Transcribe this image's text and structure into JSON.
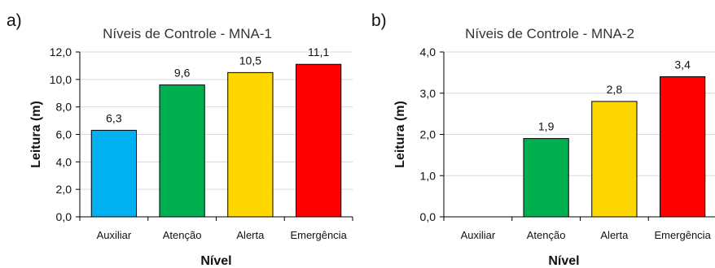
{
  "chart_data": [
    {
      "type": "bar",
      "panel_label": "a)",
      "title": "Níveis de Controle - MNA-1",
      "xlabel": "Nível",
      "ylabel": "Leitura (m)",
      "ylim": [
        0,
        12
      ],
      "yticks": [
        "0,0",
        "2,0",
        "4,0",
        "6,0",
        "8,0",
        "10,0",
        "12,0"
      ],
      "categories": [
        "Auxiliar",
        "Atenção",
        "Alerta",
        "Emergência"
      ],
      "values": [
        6.3,
        9.6,
        10.5,
        11.1
      ],
      "value_labels": [
        "6,3",
        "9,6",
        "10,5",
        "11,1"
      ],
      "colors": [
        "#00b0f0",
        "#00b050",
        "#ffd700",
        "#ff0000"
      ],
      "grid": true
    },
    {
      "type": "bar",
      "panel_label": "b)",
      "title": "Níveis de Controle - MNA-2",
      "xlabel": "Nível",
      "ylabel": "Leitura (m)",
      "ylim": [
        0,
        4
      ],
      "yticks": [
        "0,0",
        "1,0",
        "2,0",
        "3,0",
        "4,0"
      ],
      "categories": [
        "Auxiliar",
        "Atenção",
        "Alerta",
        "Emergência"
      ],
      "values": [
        null,
        1.9,
        2.8,
        3.4
      ],
      "value_labels": [
        "",
        "1,9",
        "2,8",
        "3,4"
      ],
      "colors": [
        "#00b0f0",
        "#00b050",
        "#ffd700",
        "#ff0000"
      ],
      "grid": true
    }
  ]
}
